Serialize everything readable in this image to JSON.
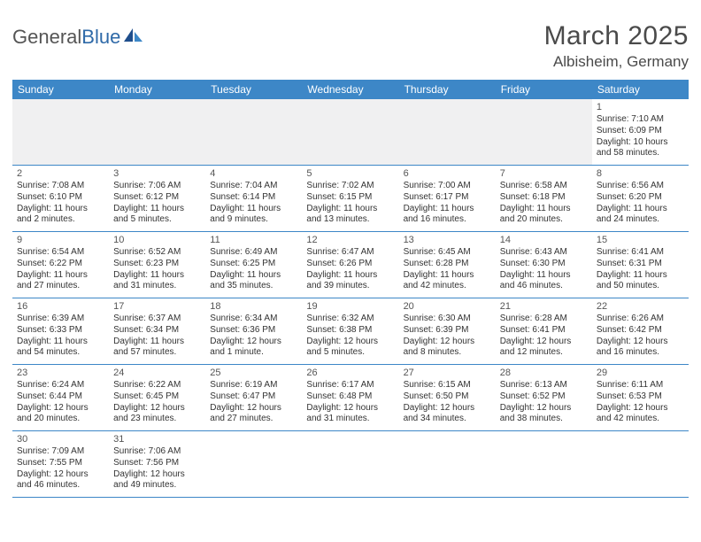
{
  "colors": {
    "header_bg": "#3d87c7",
    "header_text": "#ffffff",
    "row_border": "#3d87c7",
    "empty_row_bg": "#f0f0f1",
    "body_text": "#333333",
    "title_text": "#4a4a4a",
    "logo_gray": "#555555",
    "logo_blue": "#2f6aa8"
  },
  "logo": {
    "part1": "General",
    "part2": "Blue"
  },
  "title": "March 2025",
  "location": "Albisheim, Germany",
  "day_headers": [
    "Sunday",
    "Monday",
    "Tuesday",
    "Wednesday",
    "Thursday",
    "Friday",
    "Saturday"
  ],
  "weeks": [
    [
      null,
      null,
      null,
      null,
      null,
      null,
      {
        "n": "1",
        "sr": "Sunrise: 7:10 AM",
        "ss": "Sunset: 6:09 PM",
        "dl1": "Daylight: 10 hours",
        "dl2": "and 58 minutes."
      }
    ],
    [
      {
        "n": "2",
        "sr": "Sunrise: 7:08 AM",
        "ss": "Sunset: 6:10 PM",
        "dl1": "Daylight: 11 hours",
        "dl2": "and 2 minutes."
      },
      {
        "n": "3",
        "sr": "Sunrise: 7:06 AM",
        "ss": "Sunset: 6:12 PM",
        "dl1": "Daylight: 11 hours",
        "dl2": "and 5 minutes."
      },
      {
        "n": "4",
        "sr": "Sunrise: 7:04 AM",
        "ss": "Sunset: 6:14 PM",
        "dl1": "Daylight: 11 hours",
        "dl2": "and 9 minutes."
      },
      {
        "n": "5",
        "sr": "Sunrise: 7:02 AM",
        "ss": "Sunset: 6:15 PM",
        "dl1": "Daylight: 11 hours",
        "dl2": "and 13 minutes."
      },
      {
        "n": "6",
        "sr": "Sunrise: 7:00 AM",
        "ss": "Sunset: 6:17 PM",
        "dl1": "Daylight: 11 hours",
        "dl2": "and 16 minutes."
      },
      {
        "n": "7",
        "sr": "Sunrise: 6:58 AM",
        "ss": "Sunset: 6:18 PM",
        "dl1": "Daylight: 11 hours",
        "dl2": "and 20 minutes."
      },
      {
        "n": "8",
        "sr": "Sunrise: 6:56 AM",
        "ss": "Sunset: 6:20 PM",
        "dl1": "Daylight: 11 hours",
        "dl2": "and 24 minutes."
      }
    ],
    [
      {
        "n": "9",
        "sr": "Sunrise: 6:54 AM",
        "ss": "Sunset: 6:22 PM",
        "dl1": "Daylight: 11 hours",
        "dl2": "and 27 minutes."
      },
      {
        "n": "10",
        "sr": "Sunrise: 6:52 AM",
        "ss": "Sunset: 6:23 PM",
        "dl1": "Daylight: 11 hours",
        "dl2": "and 31 minutes."
      },
      {
        "n": "11",
        "sr": "Sunrise: 6:49 AM",
        "ss": "Sunset: 6:25 PM",
        "dl1": "Daylight: 11 hours",
        "dl2": "and 35 minutes."
      },
      {
        "n": "12",
        "sr": "Sunrise: 6:47 AM",
        "ss": "Sunset: 6:26 PM",
        "dl1": "Daylight: 11 hours",
        "dl2": "and 39 minutes."
      },
      {
        "n": "13",
        "sr": "Sunrise: 6:45 AM",
        "ss": "Sunset: 6:28 PM",
        "dl1": "Daylight: 11 hours",
        "dl2": "and 42 minutes."
      },
      {
        "n": "14",
        "sr": "Sunrise: 6:43 AM",
        "ss": "Sunset: 6:30 PM",
        "dl1": "Daylight: 11 hours",
        "dl2": "and 46 minutes."
      },
      {
        "n": "15",
        "sr": "Sunrise: 6:41 AM",
        "ss": "Sunset: 6:31 PM",
        "dl1": "Daylight: 11 hours",
        "dl2": "and 50 minutes."
      }
    ],
    [
      {
        "n": "16",
        "sr": "Sunrise: 6:39 AM",
        "ss": "Sunset: 6:33 PM",
        "dl1": "Daylight: 11 hours",
        "dl2": "and 54 minutes."
      },
      {
        "n": "17",
        "sr": "Sunrise: 6:37 AM",
        "ss": "Sunset: 6:34 PM",
        "dl1": "Daylight: 11 hours",
        "dl2": "and 57 minutes."
      },
      {
        "n": "18",
        "sr": "Sunrise: 6:34 AM",
        "ss": "Sunset: 6:36 PM",
        "dl1": "Daylight: 12 hours",
        "dl2": "and 1 minute."
      },
      {
        "n": "19",
        "sr": "Sunrise: 6:32 AM",
        "ss": "Sunset: 6:38 PM",
        "dl1": "Daylight: 12 hours",
        "dl2": "and 5 minutes."
      },
      {
        "n": "20",
        "sr": "Sunrise: 6:30 AM",
        "ss": "Sunset: 6:39 PM",
        "dl1": "Daylight: 12 hours",
        "dl2": "and 8 minutes."
      },
      {
        "n": "21",
        "sr": "Sunrise: 6:28 AM",
        "ss": "Sunset: 6:41 PM",
        "dl1": "Daylight: 12 hours",
        "dl2": "and 12 minutes."
      },
      {
        "n": "22",
        "sr": "Sunrise: 6:26 AM",
        "ss": "Sunset: 6:42 PM",
        "dl1": "Daylight: 12 hours",
        "dl2": "and 16 minutes."
      }
    ],
    [
      {
        "n": "23",
        "sr": "Sunrise: 6:24 AM",
        "ss": "Sunset: 6:44 PM",
        "dl1": "Daylight: 12 hours",
        "dl2": "and 20 minutes."
      },
      {
        "n": "24",
        "sr": "Sunrise: 6:22 AM",
        "ss": "Sunset: 6:45 PM",
        "dl1": "Daylight: 12 hours",
        "dl2": "and 23 minutes."
      },
      {
        "n": "25",
        "sr": "Sunrise: 6:19 AM",
        "ss": "Sunset: 6:47 PM",
        "dl1": "Daylight: 12 hours",
        "dl2": "and 27 minutes."
      },
      {
        "n": "26",
        "sr": "Sunrise: 6:17 AM",
        "ss": "Sunset: 6:48 PM",
        "dl1": "Daylight: 12 hours",
        "dl2": "and 31 minutes."
      },
      {
        "n": "27",
        "sr": "Sunrise: 6:15 AM",
        "ss": "Sunset: 6:50 PM",
        "dl1": "Daylight: 12 hours",
        "dl2": "and 34 minutes."
      },
      {
        "n": "28",
        "sr": "Sunrise: 6:13 AM",
        "ss": "Sunset: 6:52 PM",
        "dl1": "Daylight: 12 hours",
        "dl2": "and 38 minutes."
      },
      {
        "n": "29",
        "sr": "Sunrise: 6:11 AM",
        "ss": "Sunset: 6:53 PM",
        "dl1": "Daylight: 12 hours",
        "dl2": "and 42 minutes."
      }
    ],
    [
      {
        "n": "30",
        "sr": "Sunrise: 7:09 AM",
        "ss": "Sunset: 7:55 PM",
        "dl1": "Daylight: 12 hours",
        "dl2": "and 46 minutes."
      },
      {
        "n": "31",
        "sr": "Sunrise: 7:06 AM",
        "ss": "Sunset: 7:56 PM",
        "dl1": "Daylight: 12 hours",
        "dl2": "and 49 minutes."
      },
      null,
      null,
      null,
      null,
      null
    ]
  ]
}
